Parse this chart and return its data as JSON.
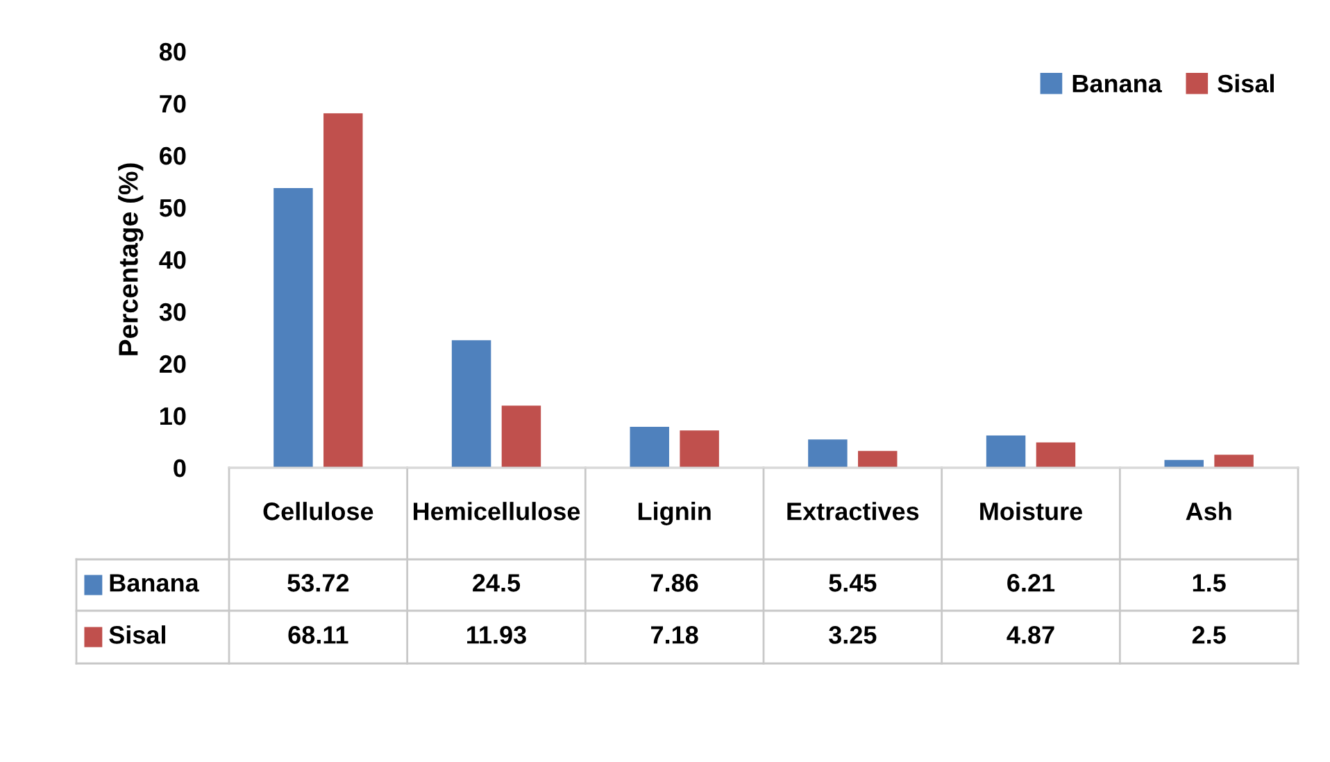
{
  "chart_data": {
    "type": "bar",
    "ylabel": "Percentage (%)",
    "categories": [
      "Cellulose",
      "Hemicellulose",
      "Lignin",
      "Extractives",
      "Moisture",
      "Ash"
    ],
    "series": [
      {
        "name": "Banana",
        "color": "#4f81bd",
        "values": [
          53.72,
          24.5,
          7.86,
          5.45,
          6.21,
          1.5
        ]
      },
      {
        "name": "Sisal",
        "color": "#c0504d",
        "values": [
          68.11,
          11.93,
          7.18,
          3.25,
          4.87,
          2.5
        ]
      }
    ],
    "ylim": [
      0,
      80
    ],
    "yticks": [
      0,
      10,
      20,
      30,
      40,
      50,
      60,
      70,
      80
    ],
    "data_labels": true,
    "legend": "top right",
    "grid": false
  }
}
